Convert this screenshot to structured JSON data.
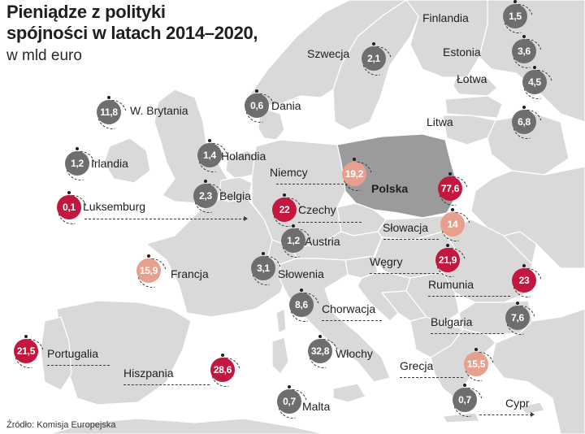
{
  "header": {
    "title_line1": "Pieniądze z polityki",
    "title_line2": "spójności w latach 2014–2020,",
    "subtitle": "w mld euro"
  },
  "source": "Źródło: Komisja Europejska",
  "colors": {
    "grey": "#6e6e70",
    "red": "#c4173f",
    "pink": "#e5a18e",
    "land": "#d9d9da",
    "poland": "#9b9b9d",
    "sea": "#ffffff"
  },
  "countries": [
    {
      "name": "Finlandia",
      "value": "1,5",
      "color": "grey"
    },
    {
      "name": "Szwecja",
      "value": "2,1",
      "color": "grey"
    },
    {
      "name": "Estonia",
      "value": "3,6",
      "color": "grey"
    },
    {
      "name": "Łotwa",
      "value": "4,5",
      "color": "grey"
    },
    {
      "name": "W. Brytania",
      "value": "11,8",
      "color": "grey"
    },
    {
      "name": "Dania",
      "value": "0,6",
      "color": "grey"
    },
    {
      "name": "Litwa",
      "value": "6,8",
      "color": "grey"
    },
    {
      "name": "Irlandia",
      "value": "1,2",
      "color": "grey"
    },
    {
      "name": "Holandia",
      "value": "1,4",
      "color": "grey"
    },
    {
      "name": "Niemcy",
      "value": "19,2",
      "color": "pink"
    },
    {
      "name": "Polska",
      "value": "77,6",
      "color": "red"
    },
    {
      "name": "Belgia",
      "value": "2,3",
      "color": "grey"
    },
    {
      "name": "Luksemburg",
      "value": "0,1",
      "color": "red"
    },
    {
      "name": "Czechy",
      "value": "22",
      "color": "red"
    },
    {
      "name": "Słowacja",
      "value": "14",
      "color": "pink"
    },
    {
      "name": "Austria",
      "value": "1,2",
      "color": "grey"
    },
    {
      "name": "Francja",
      "value": "15,9",
      "color": "pink"
    },
    {
      "name": "Węgry",
      "value": "21,9",
      "color": "red"
    },
    {
      "name": "Słowenia",
      "value": "3,1",
      "color": "grey"
    },
    {
      "name": "Rumunia",
      "value": "23",
      "color": "red"
    },
    {
      "name": "Chorwacja",
      "value": "8,6",
      "color": "grey"
    },
    {
      "name": "Bułgaria",
      "value": "7,6",
      "color": "grey"
    },
    {
      "name": "Portugalia",
      "value": "21,5",
      "color": "red"
    },
    {
      "name": "Włochy",
      "value": "32,8",
      "color": "grey"
    },
    {
      "name": "Hiszpania",
      "value": "28,6",
      "color": "red"
    },
    {
      "name": "Grecja",
      "value": "15,5",
      "color": "pink"
    },
    {
      "name": "Malta",
      "value": "0,7",
      "color": "grey"
    },
    {
      "name": "Cypr",
      "value": "0,7",
      "color": "grey"
    }
  ]
}
